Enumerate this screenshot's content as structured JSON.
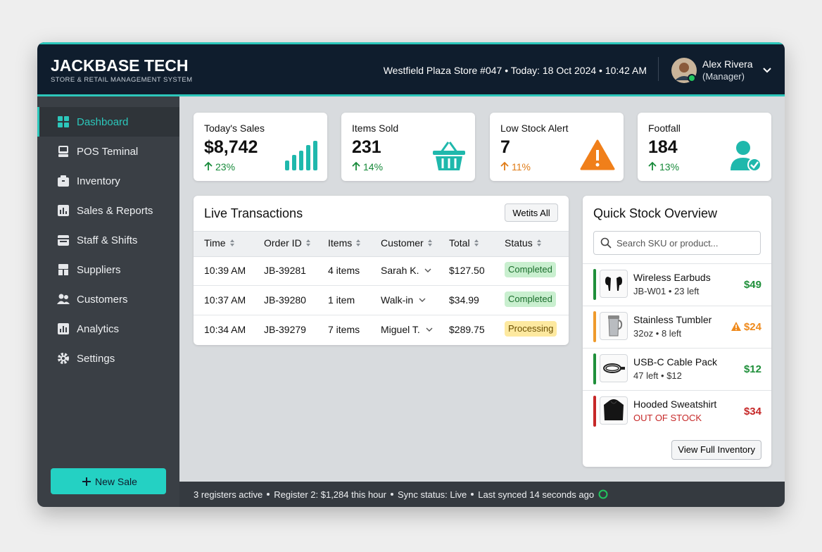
{
  "header": {
    "brand": "JACKBASE TECH",
    "tagline": "STORE & RETAIL MANAGEMENT SYSTEM",
    "context": "Westfield Plaza Store #047 • Today: 18 Oct 2024 • 10:42 AM",
    "user": {
      "name": "Alex Rivera",
      "role": "(Manager)"
    }
  },
  "sidebar": {
    "items": [
      "Dashboard",
      "POS Teminal",
      "Inventory",
      "Sales & Reports",
      "Staff & Shifts",
      "Suppliers",
      "Customers",
      "Analytics",
      "Settings"
    ],
    "new_sale": "New Sale"
  },
  "kpis": [
    {
      "label": "Today's Sales",
      "value": "$8,742",
      "change": "23%"
    },
    {
      "label": "Items Sold",
      "value": "231",
      "change": "14%"
    },
    {
      "label": "Low Stock Alert",
      "value": "7",
      "change": "11%"
    },
    {
      "label": "Footfall",
      "value": "184",
      "change": "13%"
    }
  ],
  "transactions": {
    "title": "Live Transactions",
    "view_all": "Wetits All",
    "columns": [
      "Time",
      "Order ID",
      "Items",
      "Customer",
      "Total",
      "Status"
    ],
    "rows": [
      [
        "10:39 AM",
        "JB-39281",
        "4 items",
        "Sarah K.",
        "$127.50",
        "Completed"
      ],
      [
        "10:37 AM",
        "JB-39280",
        "1 item",
        "Walk-in",
        "$34.99",
        "Completed"
      ],
      [
        "10:34 AM",
        "JB-39279",
        "7 items",
        "Miguel T.",
        "$289.75",
        "Processing"
      ]
    ]
  },
  "stock": {
    "title": "Quick Stock Overview",
    "search_placeholder": "Search SKU or product...",
    "items": [
      {
        "name": "Wireless Earbuds",
        "detail": "JB-W01 • 23 left",
        "price": "$49"
      },
      {
        "name": "Stainless Tumbler",
        "detail": "32oz • 8 left",
        "price": "$24"
      },
      {
        "name": "USB-C Cable Pack",
        "detail": "47 left • $12",
        "price": "$12"
      },
      {
        "name": "Hooded Sweatshirt",
        "detail": "OUT OF STOCK",
        "price": "$34"
      }
    ],
    "view_inventory": "View Full Inventory"
  },
  "footer": {
    "status": [
      "3 registers active",
      "Register 2: $1,284 this hour",
      "Sync status: Live",
      "Last synced 14 seconds ago"
    ]
  }
}
